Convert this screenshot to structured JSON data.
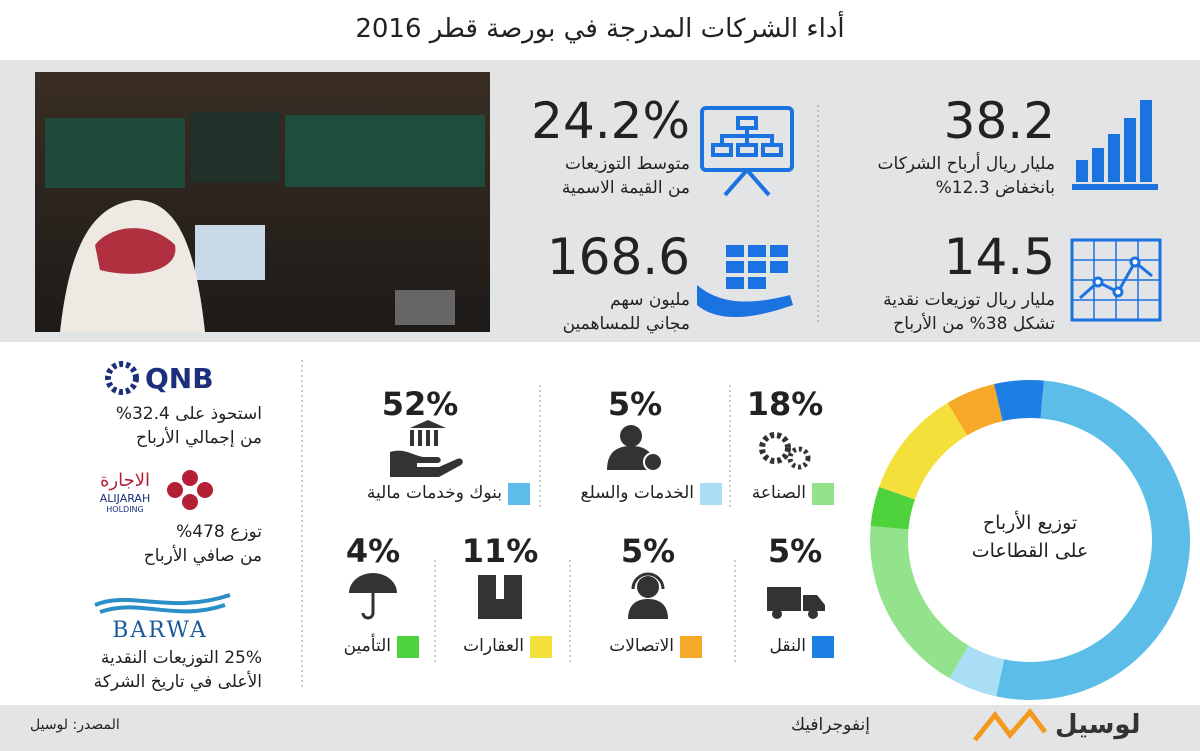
{
  "title": "أداء الشركات المدرجة في بورصة قطر 2016",
  "stats": [
    {
      "value": "38.2",
      "lines": [
        "مليار ريال أرباح الشركات",
        "بانخفاض 12.3%"
      ]
    },
    {
      "value": "24.2%",
      "lines": [
        "متوسط التوزيعات",
        "من القيمة الاسمية"
      ]
    },
    {
      "value": "14.5",
      "lines": [
        "مليار ريال توزيعات نقدية",
        "تشكل 38% من الأرباح"
      ]
    },
    {
      "value": "168.6",
      "lines": [
        "مليون سهم",
        "مجاني للمساهمين"
      ]
    }
  ],
  "chart_data": {
    "type": "pie",
    "title_lines": [
      "توزيع الأرباح",
      "على القطاعات"
    ],
    "categories": [
      "النقل",
      "بنوك وخدمات مالية",
      "الخدمات والسلع",
      "الصناعة",
      "التأمين",
      "العقارات",
      "الاتصالات"
    ],
    "values": [
      5,
      52,
      5,
      18,
      4,
      11,
      5
    ],
    "value_labels": [
      "5%",
      "52%",
      "5%",
      "18%",
      "4%",
      "11%",
      "5%"
    ],
    "colors": [
      "#1b7fe3",
      "#5cbde9",
      "#a9def6",
      "#93e28c",
      "#4fd33c",
      "#f3e03a",
      "#f6a929"
    ]
  },
  "companies": [
    {
      "logo": [
        "QNB"
      ],
      "lines": [
        "استحوذ على 32.4%",
        "من إجمالي الأرباح"
      ]
    },
    {
      "logo": [
        "الاجارة",
        "ALIJARAH",
        "HOLDING"
      ],
      "lines": [
        "توزع 478%",
        "من صافي الأرباح"
      ]
    },
    {
      "logo": [
        "BARWA"
      ],
      "lines": [
        "25% التوزيعات النقدية",
        "الأعلى في تاريخ الشركة"
      ]
    }
  ],
  "footer": {
    "source": "المصدر: لوسيل",
    "brand": "لوسيل",
    "tag": "إنفوجرافيك"
  }
}
